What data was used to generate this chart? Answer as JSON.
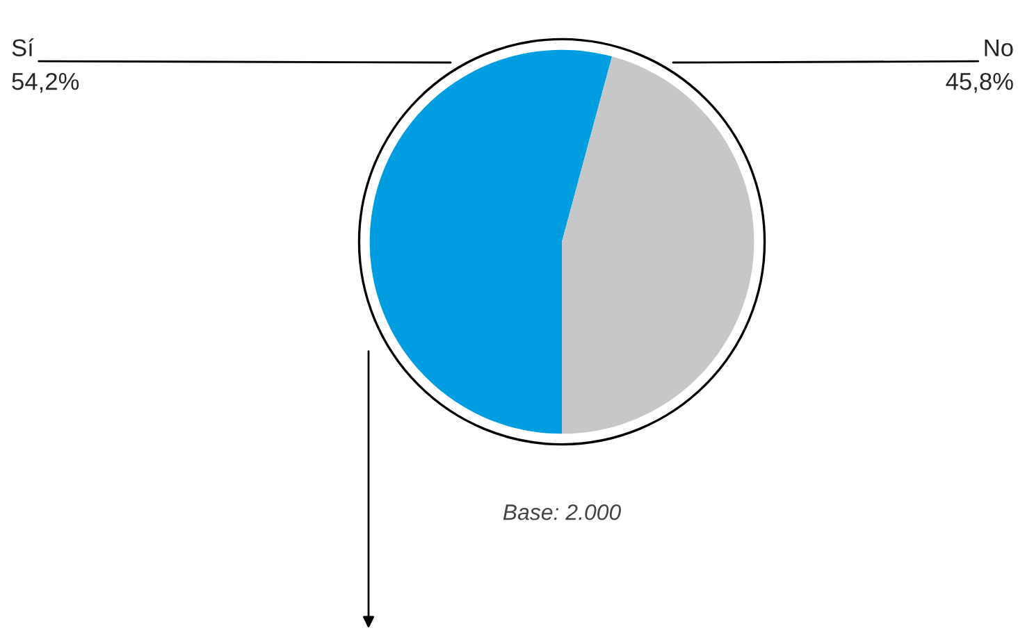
{
  "chart_data": {
    "type": "pie",
    "categories": [
      "Sí",
      "No"
    ],
    "values": [
      54.2,
      45.8
    ],
    "colors": [
      "#009ee0",
      "#c6c7c9"
    ],
    "value_labels": [
      "54,2%",
      "45,8%"
    ],
    "annotations": [
      "Base: 2.000"
    ]
  }
}
